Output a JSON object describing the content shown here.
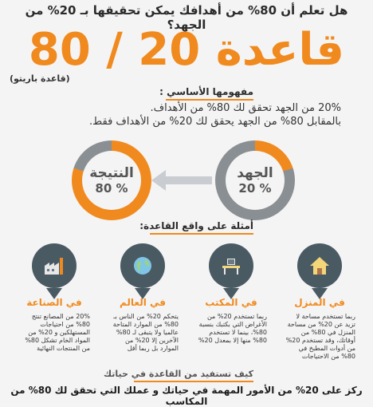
{
  "header": {
    "question": "هل تعلم أن 80% من أهدافك يمكن تحقيقها بـ 20% من الجهد؟",
    "big_title": "قاعدة 20 / 80",
    "subtitle": "(قاعدة باريتو)"
  },
  "concept": {
    "heading": "مفهومها الأساسي :",
    "line1": "20% من الجهد تحقق لك 80% من الأهداف.",
    "line2": "بالمقابل 80% من الجهد يحقق لك 20% من الأهداف فقط."
  },
  "rings": {
    "effort": {
      "label": "الجهد",
      "pct": "20 %",
      "fill_fraction": 0.2
    },
    "result": {
      "label": "النتيجة",
      "pct": "80 %",
      "fill_fraction": 0.8
    },
    "accent": "#f08a1e",
    "track": "#8a8f93"
  },
  "examples": {
    "heading": "أمثلة على واقع القاعدة:",
    "items": [
      {
        "label": "في المنزل",
        "icon": "house-icon",
        "text": "ربما تستخدم مساحة لا تزيد عن 20% من مساحة المنزل في 80% من أوقاتك، وقد تستخدم 20% من أدوات المطبخ في 80% من الاحتياجات"
      },
      {
        "label": "في المكتب",
        "icon": "desk-icon",
        "text": "ربما تستخدم 20% من الأغراض التي بكتبك بنسبة 80%، بينما لا تستخدم 80% منها إلا بمعدل 20%"
      },
      {
        "label": "في العالم",
        "icon": "globe-icon",
        "text": "يتحكم 20% من الناس بـ 80% من الموارد المتاحة عالميا ولا يتبقى لـ 80% الآخرين إلا 20% من الموارد بل ربما أقل"
      },
      {
        "label": "في الصناعة",
        "icon": "factory-icon",
        "text": "20% من المصانع تنتج 80% من احتياجات المستهلكين و 20% من المواد الخام تشكل 80% من المنتجات النهائية"
      }
    ]
  },
  "footer": {
    "how_heading": "كيف تستفيد من القاعدة في حياتك",
    "advice": "ركز على 20% من الأمور المهمة في حياتك و عملك التي تحقق لك 80% من المكاسب"
  }
}
